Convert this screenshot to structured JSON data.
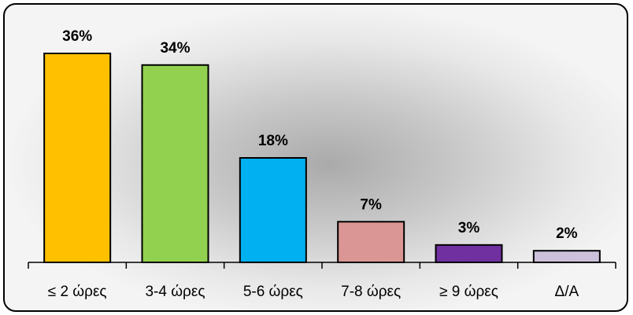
{
  "chart_data": {
    "type": "bar",
    "title": "",
    "xlabel": "",
    "ylabel": "",
    "categories": [
      "≤ 2 ώρες",
      "3-4 ώρες",
      "5-6 ώρες",
      "7-8 ώρες",
      "≥ 9 ώρες",
      "Δ/Α"
    ],
    "values": [
      36,
      34,
      18,
      7,
      3,
      2
    ],
    "data_labels": [
      "36%",
      "34%",
      "18%",
      "7%",
      "3%",
      "2%"
    ],
    "colors": [
      "#FFC000",
      "#92D050",
      "#00B0F0",
      "#DA9694",
      "#7030A0",
      "#CCC0DA"
    ],
    "ylim": [
      0,
      36
    ],
    "grid": false,
    "legend": "none"
  }
}
